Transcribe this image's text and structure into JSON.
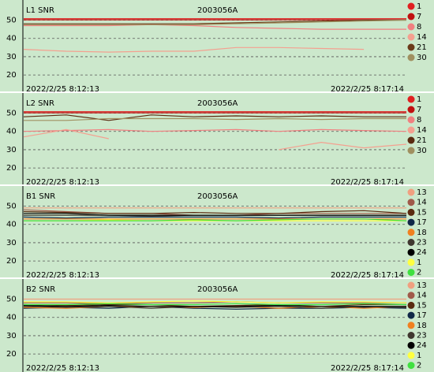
{
  "chart_data": [
    {
      "type": "line",
      "title": "L1 SNR",
      "subtitle": "2003056A",
      "x_labels": [
        "2022/2/25 8:12:13",
        "2022/2/25 8:17:14"
      ],
      "ylim": [
        11,
        61
      ],
      "yticks": [
        20,
        30,
        40,
        50
      ],
      "grid": true,
      "legend": "right",
      "series": [
        {
          "name": "1",
          "color": "#e02020",
          "values": [
            50.8,
            50.8,
            50.8,
            50.8,
            50.8,
            50.8,
            50.8,
            50.8,
            50.8,
            50.8
          ]
        },
        {
          "name": "7",
          "color": "#c01010",
          "values": [
            50.2,
            50.2,
            50.2,
            50.2,
            50.2,
            50.2,
            50.2,
            50.2,
            50.2,
            50.2
          ]
        },
        {
          "name": "8",
          "color": "#f08080",
          "values": [
            47,
            47,
            47,
            47.5,
            47,
            46,
            45.5,
            45,
            45,
            45
          ]
        },
        {
          "name": "14",
          "color": "#f4a090",
          "values": [
            34,
            33,
            32.5,
            33,
            33,
            35,
            35,
            34.5,
            34,
            null
          ]
        },
        {
          "name": "21",
          "color": "#6b3a1a",
          "values": [
            48,
            48,
            48,
            48,
            48,
            48.5,
            49,
            49.5,
            50,
            50
          ]
        },
        {
          "name": "30",
          "color": "#a09060",
          "values": [
            47.5,
            47.5,
            47.5,
            47.5,
            47.5,
            48,
            48.5,
            49,
            49.5,
            50
          ]
        }
      ]
    },
    {
      "type": "line",
      "title": "L2 SNR",
      "subtitle": "2003056A",
      "x_labels": [
        "2022/2/25 8:12:13",
        "2022/2/25 8:17:14"
      ],
      "ylim": [
        11,
        61
      ],
      "yticks": [
        20,
        30,
        40,
        50
      ],
      "grid": true,
      "legend": "right",
      "series": [
        {
          "name": "1",
          "color": "#e02020",
          "values": [
            50.8,
            50.8,
            50.8,
            50.8,
            50.8,
            50.8,
            50.8,
            50.8,
            50.8,
            50.8
          ]
        },
        {
          "name": "7",
          "color": "#c01010",
          "values": [
            50.2,
            50.2,
            50.2,
            50.2,
            50.2,
            50.2,
            50.2,
            50.2,
            50.2,
            50.2
          ]
        },
        {
          "name": "8",
          "color": "#f08080",
          "values": [
            40,
            40.5,
            41,
            40,
            40.5,
            41,
            40,
            41,
            40.5,
            40
          ]
        },
        {
          "name": "14",
          "color": "#f4a090",
          "values": [
            37,
            41,
            36,
            null,
            31,
            null,
            30,
            34,
            31,
            33
          ]
        },
        {
          "name": "21",
          "color": "#5a2a10",
          "values": [
            48,
            49,
            46,
            49,
            48,
            48.5,
            48,
            48.5,
            48,
            48
          ]
        },
        {
          "name": "30",
          "color": "#a09060",
          "values": [
            46,
            46,
            47,
            47,
            47,
            46.5,
            47,
            46.5,
            47,
            47
          ]
        }
      ]
    },
    {
      "type": "line",
      "title": "B1 SNR",
      "subtitle": "2003056A",
      "x_labels": [
        "2022/2/25 8:12:13",
        "2022/2/25 8:17:14"
      ],
      "ylim": [
        11,
        61
      ],
      "yticks": [
        20,
        30,
        40,
        50
      ],
      "grid": true,
      "legend": "right",
      "series": [
        {
          "name": "13",
          "color": "#f0a080",
          "values": [
            49,
            49,
            49,
            49,
            49,
            49,
            49,
            49,
            49,
            49
          ]
        },
        {
          "name": "14",
          "color": "#a05a4a",
          "values": [
            48,
            47,
            46,
            46,
            45,
            45,
            46,
            46,
            46,
            46
          ]
        },
        {
          "name": "15",
          "color": "#5a2a10",
          "values": [
            47,
            46.5,
            46,
            46,
            46.5,
            46,
            46,
            47,
            47.5,
            46
          ]
        },
        {
          "name": "17",
          "color": "#102848",
          "values": [
            44,
            43.5,
            44,
            44,
            44,
            44,
            43.5,
            44,
            44,
            44
          ]
        },
        {
          "name": "18",
          "color": "#f08020",
          "values": [
            43,
            43,
            43,
            43,
            43,
            43,
            43,
            43,
            43,
            43
          ]
        },
        {
          "name": "23",
          "color": "#403830",
          "values": [
            45,
            45,
            45,
            44.5,
            45,
            45,
            45,
            45,
            45,
            45
          ]
        },
        {
          "name": "24",
          "color": "#000000",
          "values": [
            46,
            46,
            45,
            45,
            45,
            45,
            45,
            45,
            45,
            45
          ]
        },
        {
          "name": "1",
          "color": "#ffff40",
          "values": [
            42,
            42,
            42.5,
            42,
            42,
            42,
            42,
            42,
            42,
            42
          ]
        },
        {
          "name": "2",
          "color": "#40e040",
          "values": [
            42,
            42,
            42,
            42,
            42.5,
            42,
            42.5,
            43,
            43,
            42
          ]
        }
      ]
    },
    {
      "type": "line",
      "title": "B2 SNR",
      "subtitle": "2003056A",
      "x_labels": [
        "2022/2/25 8:12:13",
        "2022/2/25 8:17:14"
      ],
      "ylim": [
        11,
        61
      ],
      "yticks": [
        20,
        30,
        40,
        50
      ],
      "grid": true,
      "legend": "right",
      "series": [
        {
          "name": "13",
          "color": "#f0a080",
          "values": [
            50,
            50,
            50,
            50,
            50,
            50,
            50,
            50,
            50,
            50
          ]
        },
        {
          "name": "14",
          "color": "#a05a4a",
          "values": [
            48,
            48,
            47.5,
            48,
            48,
            48.5,
            48,
            48,
            48,
            48
          ]
        },
        {
          "name": "15",
          "color": "#5a2a10",
          "values": [
            47,
            46.5,
            47,
            47,
            46,
            46.5,
            47,
            46,
            47,
            47
          ]
        },
        {
          "name": "17",
          "color": "#102848",
          "values": [
            45,
            45.5,
            45,
            46,
            45,
            44.5,
            45,
            45,
            45.5,
            45
          ]
        },
        {
          "name": "18",
          "color": "#f08020",
          "values": [
            45.5,
            45,
            46,
            46,
            45.5,
            46,
            45,
            46,
            45,
            46
          ]
        },
        {
          "name": "23",
          "color": "#403830",
          "values": [
            46,
            45.5,
            46,
            45,
            46,
            45.5,
            46,
            45,
            46,
            45.5
          ]
        },
        {
          "name": "24",
          "color": "#000000",
          "values": [
            46.5,
            46,
            46.5,
            46,
            46,
            46,
            46.5,
            46,
            46,
            46
          ]
        },
        {
          "name": "1",
          "color": "#ffff40",
          "values": [
            48.5,
            48.5,
            48,
            48.5,
            49,
            48.5,
            48,
            48.5,
            48.5,
            48
          ]
        },
        {
          "name": "2",
          "color": "#40e040",
          "values": [
            47,
            47,
            47.5,
            47,
            47,
            47.5,
            47,
            47,
            47.5,
            47
          ]
        }
      ]
    }
  ]
}
